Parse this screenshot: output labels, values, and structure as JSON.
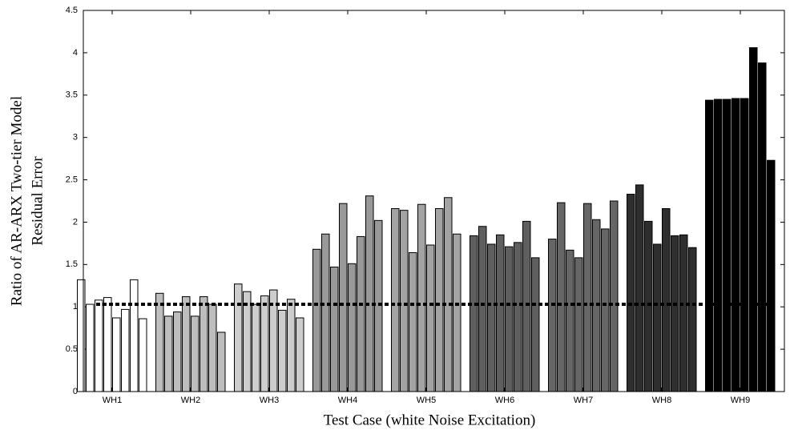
{
  "chart_data": {
    "type": "grouped-bar",
    "y_label_lines": [
      "Ratio of AR-ARX Two-tier Model",
      "Residual Error"
    ],
    "x_label": "Test Case (white Noise Excitation)",
    "categories": [
      "WH1",
      "WH2",
      "WH3",
      "WH4",
      "WH5",
      "WH6",
      "WH7",
      "WH8",
      "WH9"
    ],
    "colors": [
      "#ffffff",
      "#bdbdbd",
      "#cdcdcd",
      "#999999",
      "#a3a3a3",
      "#5f5f5f",
      "#666666",
      "#2e2e2e",
      "#000000"
    ],
    "values": [
      [
        1.32,
        1.03,
        1.08,
        1.11,
        0.87,
        0.97,
        1.32,
        0.86
      ],
      [
        1.16,
        0.89,
        0.94,
        1.12,
        0.89,
        1.12,
        1.03,
        0.7
      ],
      [
        1.27,
        1.18,
        1.03,
        1.13,
        1.2,
        0.96,
        1.09,
        0.87
      ],
      [
        1.68,
        1.86,
        1.47,
        2.22,
        1.51,
        1.83,
        2.31,
        2.02
      ],
      [
        2.16,
        2.14,
        1.64,
        2.21,
        1.73,
        2.16,
        2.29,
        1.86
      ],
      [
        1.84,
        1.95,
        1.74,
        1.85,
        1.71,
        1.76,
        2.01,
        1.58
      ],
      [
        1.8,
        2.23,
        1.67,
        1.58,
        2.22,
        2.03,
        1.92,
        2.25
      ],
      [
        2.33,
        2.44,
        2.01,
        1.74,
        2.16,
        1.84,
        1.85,
        1.7
      ],
      [
        3.44,
        3.45,
        3.45,
        3.46,
        3.46,
        4.06,
        3.88,
        2.73
      ]
    ],
    "reference_line": 1.03,
    "ylim": [
      0,
      4.5
    ],
    "yticks": [
      0,
      0.5,
      1,
      1.5,
      2,
      2.5,
      3,
      3.5,
      4,
      4.5
    ]
  }
}
